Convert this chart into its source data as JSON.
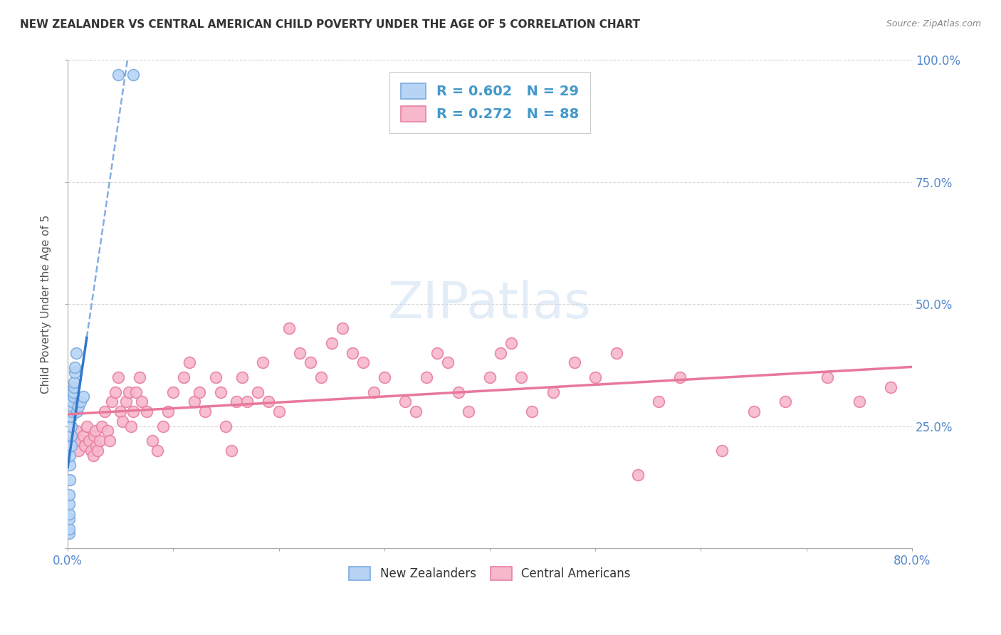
{
  "title": "NEW ZEALANDER VS CENTRAL AMERICAN CHILD POVERTY UNDER THE AGE OF 5 CORRELATION CHART",
  "source": "Source: ZipAtlas.com",
  "ylabel": "Child Poverty Under the Age of 5",
  "xlim": [
    0.0,
    0.8
  ],
  "ylim": [
    0.0,
    1.0
  ],
  "nz_color": "#b8d4f5",
  "nz_edge_color": "#7aabdf",
  "ca_color": "#f7b8cc",
  "ca_edge_color": "#e87fa0",
  "nz_line_color": "#3377cc",
  "ca_line_color": "#e8789a",
  "nz_R": 0.602,
  "nz_N": 29,
  "ca_R": 0.272,
  "ca_N": 88,
  "background_color": "#ffffff",
  "grid_color": "#cccccc",
  "nz_x": [
    0.001,
    0.001,
    0.001,
    0.001,
    0.001,
    0.001,
    0.002,
    0.002,
    0.002,
    0.003,
    0.003,
    0.003,
    0.003,
    0.004,
    0.004,
    0.004,
    0.005,
    0.005,
    0.006,
    0.006,
    0.007,
    0.007,
    0.008,
    0.009,
    0.01,
    0.012,
    0.015,
    0.048,
    0.062
  ],
  "nz_y": [
    0.03,
    0.04,
    0.06,
    0.07,
    0.09,
    0.11,
    0.14,
    0.17,
    0.19,
    0.21,
    0.23,
    0.25,
    0.27,
    0.28,
    0.29,
    0.3,
    0.31,
    0.32,
    0.33,
    0.34,
    0.36,
    0.37,
    0.4,
    0.28,
    0.29,
    0.3,
    0.31,
    0.97,
    0.97
  ],
  "ca_x": [
    0.005,
    0.008,
    0.01,
    0.012,
    0.015,
    0.016,
    0.018,
    0.02,
    0.022,
    0.024,
    0.025,
    0.026,
    0.027,
    0.028,
    0.03,
    0.032,
    0.035,
    0.038,
    0.04,
    0.042,
    0.045,
    0.048,
    0.05,
    0.052,
    0.055,
    0.058,
    0.06,
    0.062,
    0.065,
    0.068,
    0.07,
    0.075,
    0.08,
    0.085,
    0.09,
    0.095,
    0.1,
    0.11,
    0.115,
    0.12,
    0.125,
    0.13,
    0.14,
    0.145,
    0.15,
    0.155,
    0.16,
    0.165,
    0.17,
    0.18,
    0.185,
    0.19,
    0.2,
    0.21,
    0.22,
    0.23,
    0.24,
    0.25,
    0.26,
    0.27,
    0.28,
    0.29,
    0.3,
    0.32,
    0.33,
    0.34,
    0.35,
    0.36,
    0.37,
    0.38,
    0.4,
    0.41,
    0.42,
    0.43,
    0.44,
    0.46,
    0.48,
    0.5,
    0.52,
    0.54,
    0.56,
    0.58,
    0.62,
    0.65,
    0.68,
    0.72,
    0.75,
    0.78
  ],
  "ca_y": [
    0.22,
    0.24,
    0.2,
    0.22,
    0.23,
    0.21,
    0.25,
    0.22,
    0.2,
    0.19,
    0.23,
    0.24,
    0.21,
    0.2,
    0.22,
    0.25,
    0.28,
    0.24,
    0.22,
    0.3,
    0.32,
    0.35,
    0.28,
    0.26,
    0.3,
    0.32,
    0.25,
    0.28,
    0.32,
    0.35,
    0.3,
    0.28,
    0.22,
    0.2,
    0.25,
    0.28,
    0.32,
    0.35,
    0.38,
    0.3,
    0.32,
    0.28,
    0.35,
    0.32,
    0.25,
    0.2,
    0.3,
    0.35,
    0.3,
    0.32,
    0.38,
    0.3,
    0.28,
    0.45,
    0.4,
    0.38,
    0.35,
    0.42,
    0.45,
    0.4,
    0.38,
    0.32,
    0.35,
    0.3,
    0.28,
    0.35,
    0.4,
    0.38,
    0.32,
    0.28,
    0.35,
    0.4,
    0.42,
    0.35,
    0.28,
    0.32,
    0.38,
    0.35,
    0.4,
    0.15,
    0.3,
    0.35,
    0.2,
    0.28,
    0.3,
    0.35,
    0.3,
    0.33
  ]
}
